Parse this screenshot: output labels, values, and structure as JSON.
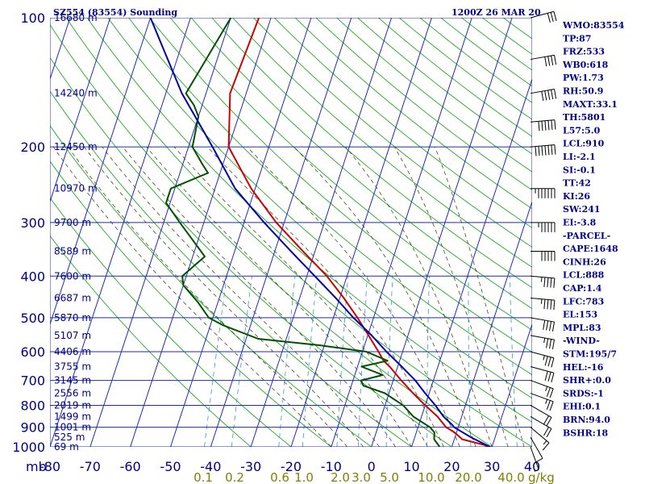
{
  "chart_data": {
    "type": "line",
    "title_left": "SZ554 (83554) Sounding",
    "title_right": "1200Z 26 MAR 20",
    "pressure_unit_label": "mb",
    "pressure_levels": [
      100,
      200,
      300,
      400,
      500,
      600,
      700,
      800,
      900,
      1000
    ],
    "temperature_ticks": [
      -80,
      -70,
      -60,
      -50,
      -40,
      -30,
      -20,
      -10,
      0,
      10,
      20,
      30,
      40
    ],
    "xlim": [
      -80,
      40
    ],
    "ylim": [
      1000,
      100
    ],
    "skew_degC_per_decade": 35,
    "isotherm_step": 10,
    "height_labels": [
      {
        "p": 100,
        "label": "16680 m"
      },
      {
        "p": 150,
        "label": "14240 m"
      },
      {
        "p": 200,
        "label": "12450 m"
      },
      {
        "p": 250,
        "label": "10970 m"
      },
      {
        "p": 300,
        "label": "9700 m"
      },
      {
        "p": 350,
        "label": "8589 m"
      },
      {
        "p": 400,
        "label": "7600 m"
      },
      {
        "p": 450,
        "label": "6687 m"
      },
      {
        "p": 500,
        "label": "5870 m"
      },
      {
        "p": 550,
        "label": "5107 m"
      },
      {
        "p": 600,
        "label": "4406 m"
      },
      {
        "p": 650,
        "label": "3755 m"
      },
      {
        "p": 700,
        "label": "3145 m"
      },
      {
        "p": 750,
        "label": "2556 m"
      },
      {
        "p": 800,
        "label": "2019 m"
      },
      {
        "p": 850,
        "label": "1499 m"
      },
      {
        "p": 900,
        "label": "1001 m"
      },
      {
        "p": 950,
        "label": "525 m"
      },
      {
        "p": 1000,
        "label": "69 m"
      }
    ],
    "mixing_ratio_labels": [
      "0.1",
      "0.2",
      "0.6",
      "1.0",
      "2.0",
      "3.0",
      "5.0",
      "10.0",
      "20.0",
      "40.0"
    ],
    "mixing_ratio_unit": "g/kg",
    "mixing_ratio_values": [
      0.1,
      0.2,
      0.6,
      1.0,
      2.0,
      3.0,
      5.0,
      10.0,
      20.0,
      40.0
    ],
    "series": [
      {
        "name": "temperature",
        "color": "#cc0000",
        "points": [
          [
            1000,
            29
          ],
          [
            990,
            28
          ],
          [
            960,
            22
          ],
          [
            925,
            19.5
          ],
          [
            900,
            17
          ],
          [
            850,
            14
          ],
          [
            800,
            10
          ],
          [
            750,
            6
          ],
          [
            700,
            2
          ],
          [
            650,
            -2
          ],
          [
            630,
            -4
          ],
          [
            600,
            -6
          ],
          [
            560,
            -9
          ],
          [
            500,
            -14
          ],
          [
            450,
            -19
          ],
          [
            400,
            -25
          ],
          [
            350,
            -33
          ],
          [
            300,
            -42
          ],
          [
            250,
            -51
          ],
          [
            200,
            -60
          ],
          [
            150,
            -64
          ],
          [
            100,
            -63
          ]
        ]
      },
      {
        "name": "dewpoint",
        "color": "#005000",
        "points": [
          [
            1000,
            17
          ],
          [
            960,
            15
          ],
          [
            925,
            14.5
          ],
          [
            900,
            13
          ],
          [
            850,
            8
          ],
          [
            800,
            4.5
          ],
          [
            750,
            -1
          ],
          [
            720,
            -7
          ],
          [
            700,
            -8
          ],
          [
            680,
            -3
          ],
          [
            650,
            -9
          ],
          [
            630,
            -3
          ],
          [
            600,
            -9
          ],
          [
            580,
            -21
          ],
          [
            560,
            -37
          ],
          [
            520,
            -47
          ],
          [
            500,
            -51
          ],
          [
            460,
            -55
          ],
          [
            420,
            -60
          ],
          [
            400,
            -61
          ],
          [
            360,
            -57
          ],
          [
            300,
            -66
          ],
          [
            270,
            -71
          ],
          [
            250,
            -71
          ],
          [
            230,
            -63
          ],
          [
            220,
            -65
          ],
          [
            200,
            -69
          ],
          [
            170,
            -70
          ],
          [
            160,
            -72
          ],
          [
            150,
            -75
          ],
          [
            100,
            -70
          ]
        ]
      },
      {
        "name": "parcel",
        "color": "#0000aa",
        "points": [
          [
            1000,
            29.5
          ],
          [
            950,
            24
          ],
          [
            900,
            19
          ],
          [
            888,
            18.3
          ],
          [
            850,
            15.5
          ],
          [
            800,
            12.5
          ],
          [
            750,
            9
          ],
          [
            700,
            5.5
          ],
          [
            650,
            1
          ],
          [
            600,
            -4
          ],
          [
            550,
            -9
          ],
          [
            500,
            -15
          ],
          [
            450,
            -21
          ],
          [
            400,
            -28
          ],
          [
            350,
            -36
          ],
          [
            300,
            -45
          ],
          [
            250,
            -55
          ],
          [
            200,
            -64
          ],
          [
            150,
            -76
          ],
          [
            100,
            -90
          ]
        ]
      }
    ],
    "wind_barbs": [
      {
        "p": 1000,
        "dir": 200,
        "spd": 5
      },
      {
        "p": 950,
        "dir": 210,
        "spd": 10
      },
      {
        "p": 900,
        "dir": 230,
        "spd": 15
      },
      {
        "p": 850,
        "dir": 240,
        "spd": 20
      },
      {
        "p": 800,
        "dir": 240,
        "spd": 20
      },
      {
        "p": 750,
        "dir": 250,
        "spd": 25
      },
      {
        "p": 700,
        "dir": 250,
        "spd": 25
      },
      {
        "p": 650,
        "dir": 255,
        "spd": 30
      },
      {
        "p": 600,
        "dir": 255,
        "spd": 35
      },
      {
        "p": 550,
        "dir": 260,
        "spd": 35
      },
      {
        "p": 500,
        "dir": 260,
        "spd": 40
      },
      {
        "p": 450,
        "dir": 265,
        "spd": 45
      },
      {
        "p": 400,
        "dir": 265,
        "spd": 45
      },
      {
        "p": 350,
        "dir": 270,
        "spd": 50
      },
      {
        "p": 300,
        "dir": 270,
        "spd": 55
      },
      {
        "p": 250,
        "dir": 270,
        "spd": 65
      },
      {
        "p": 200,
        "dir": 275,
        "spd": 70
      },
      {
        "p": 175,
        "dir": 275,
        "spd": 60
      },
      {
        "p": 150,
        "dir": 280,
        "spd": 50
      },
      {
        "p": 125,
        "dir": 280,
        "spd": 40
      },
      {
        "p": 100,
        "dir": 285,
        "spd": 30
      }
    ],
    "indices": [
      "WMO:83554",
      "TP:87",
      "FRZ:533",
      "WB0:618",
      "PW:1.73",
      "RH:50.9",
      "MAXT:33.1",
      "TH:5801",
      "L57:5.0",
      "LCL:910",
      "LI:-2.1",
      "SI:-0.1",
      "TT:42",
      "KI:26",
      "SW:241",
      "EI:-3.8",
      "-PARCEL-",
      "CAPE:1648",
      "CINH:26",
      "LCL:888",
      "CAP:1.4",
      "LFC:783",
      "EL:153",
      "MPL:83",
      "-WIND-",
      "STM:195/7",
      "HEL:-16",
      "SHR+:0.0",
      "SRDS:-1",
      "EHI:0.1",
      "BRN:94.0",
      "BSHR:18"
    ]
  }
}
